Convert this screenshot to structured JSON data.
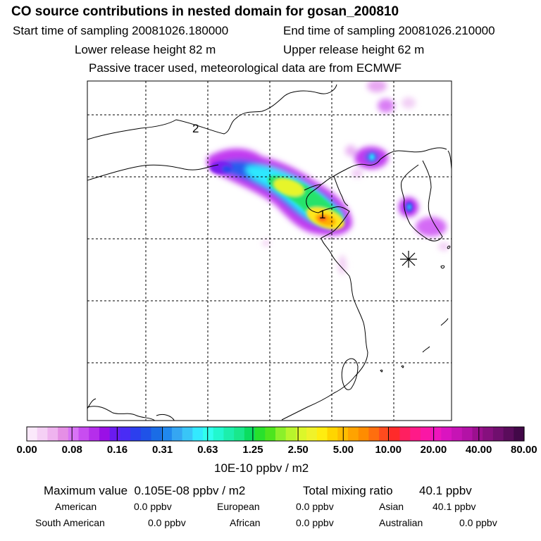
{
  "header": {
    "title": "CO  source contributions in nested domain for gosan_200810",
    "start_sampling": "Start time of sampling 20081026.180000",
    "end_sampling": "End time of sampling 20081026.210000",
    "lower_release": "Lower release height   82 m",
    "upper_release": "Upper release height   62 m",
    "tracer_note": "Passive tracer used, meteorological data are from ECMWF"
  },
  "map": {
    "labels": {
      "release_marker": "1",
      "secondary_marker": "2"
    },
    "receptor_marker": "star-icon"
  },
  "chart_data": {
    "type": "heatmap",
    "title": "CO  source contributions in nested domain for gosan_200810",
    "colorbar": {
      "tick_labels": [
        "0.00",
        "0.08",
        "0.16",
        "0.31",
        "0.63",
        "1.25",
        "2.50",
        "5.00",
        "10.00",
        "20.00",
        "40.00",
        "80.00"
      ],
      "tick_values": [
        0,
        0.08,
        0.16,
        0.31,
        0.63,
        1.25,
        2.5,
        5,
        10,
        20,
        40,
        80
      ],
      "units": "10E-10 ppbv / m2",
      "colors": [
        "#fbe9fb",
        "#f5d0f5",
        "#efb3ef",
        "#e58fe5",
        "#d873f5",
        "#c84df0",
        "#b52eeb",
        "#9a10e6",
        "#6a1bf0",
        "#4a2cf5",
        "#2c3fee",
        "#1f52e8",
        "#1a6ce6",
        "#2088ee",
        "#35a6f2",
        "#39c5f7",
        "#33e9ff",
        "#30ffee",
        "#22f8cf",
        "#1cefac",
        "#19e88c",
        "#0bdd60",
        "#28e12c",
        "#4de51e",
        "#8bf02a",
        "#b8f52c",
        "#dcf72a",
        "#f0f22a",
        "#ffed10",
        "#ffd500",
        "#ffbd00",
        "#ffa300",
        "#ff8c00",
        "#ff6e0e",
        "#ff4b1e",
        "#ff2a2a",
        "#ff1f60",
        "#ff1a88",
        "#fa17a5",
        "#ef15bd",
        "#da14c0",
        "#c614b5",
        "#b312a6",
        "#9c108f",
        "#86107e",
        "#700f6e",
        "#5a0c5b",
        "#420848"
      ]
    },
    "max_value": "0.105E-08",
    "max_units": "ppbv / m2",
    "total_mixing_ratio": "40.1",
    "total_units": "ppbv",
    "regions": [
      {
        "name": "American",
        "value": "0.0 ppbv"
      },
      {
        "name": "European",
        "value": "0.0 ppbv"
      },
      {
        "name": "Asian",
        "value": "40.1 ppbv"
      },
      {
        "name": "South American",
        "value": "0.0 ppbv"
      },
      {
        "name": "African",
        "value": "0.0 ppbv"
      },
      {
        "name": "Australian",
        "value": "0.0 ppbv"
      }
    ]
  },
  "summary": {
    "max_label": "Maximum value",
    "max_text": "0.105E-08 ppbv / m2",
    "total_label": "Total mixing ratio",
    "total_text": "40.1 ppbv"
  }
}
